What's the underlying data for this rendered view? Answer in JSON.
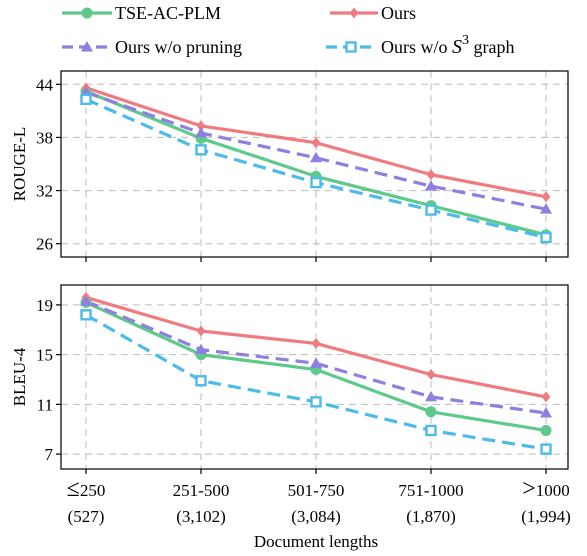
{
  "chart_data": {
    "type": "line",
    "xlabel": "Document lengths",
    "categories": [
      "≤250",
      "251-500",
      "501-750",
      "751-1000",
      ">1000"
    ],
    "category_counts": [
      "(527)",
      "(3,102)",
      "(3,084)",
      "(1,870)",
      "(1,994)"
    ],
    "legend": {
      "placement": "top",
      "items": [
        {
          "key": "tse",
          "label": "TSE-AC-PLM"
        },
        {
          "key": "ours",
          "label": "Ours"
        },
        {
          "key": "nopruning",
          "label": "Ours w/o pruning"
        },
        {
          "key": "nos3",
          "label_prefix": "Ours w/o ",
          "label_math_base": "S",
          "label_math_sup": "3",
          "label_suffix": " graph"
        }
      ]
    },
    "series_style": {
      "tse": {
        "color": "#5dc98a",
        "dash": "solid",
        "marker": "circle"
      },
      "ours": {
        "color": "#f07b7f",
        "dash": "solid",
        "marker": "diamond"
      },
      "nopruning": {
        "color": "#8e7fe0",
        "dash": "dashed",
        "marker": "triangle"
      },
      "nos3": {
        "color": "#4dbbea",
        "dash": "dashed",
        "marker": "square"
      }
    },
    "panels": [
      {
        "ylabel": "ROUGE-L",
        "ylim": [
          24.5,
          45.5
        ],
        "yticks": [
          26,
          32,
          38,
          44
        ],
        "grid": true,
        "series": [
          {
            "key": "tse",
            "values": [
              43.2,
              37.9,
              33.6,
              30.3,
              27.0
            ]
          },
          {
            "key": "ours",
            "values": [
              43.6,
              39.3,
              37.4,
              33.8,
              31.3
            ]
          },
          {
            "key": "nopruning",
            "values": [
              43.1,
              38.5,
              35.7,
              32.5,
              29.9
            ]
          },
          {
            "key": "nos3",
            "values": [
              42.3,
              36.6,
              32.9,
              29.8,
              26.7
            ]
          }
        ]
      },
      {
        "ylabel": "BLEU-4",
        "ylim": [
          5.8,
          20.6
        ],
        "yticks": [
          7,
          11,
          15,
          19
        ],
        "grid": true,
        "series": [
          {
            "key": "tse",
            "values": [
              19.2,
              15.0,
              13.8,
              10.4,
              8.9
            ]
          },
          {
            "key": "ours",
            "values": [
              19.6,
              16.9,
              15.9,
              13.4,
              11.6
            ]
          },
          {
            "key": "nopruning",
            "values": [
              19.3,
              15.4,
              14.3,
              11.6,
              10.3
            ]
          },
          {
            "key": "nos3",
            "values": [
              18.2,
              12.9,
              11.2,
              8.9,
              7.4
            ]
          }
        ]
      }
    ]
  }
}
